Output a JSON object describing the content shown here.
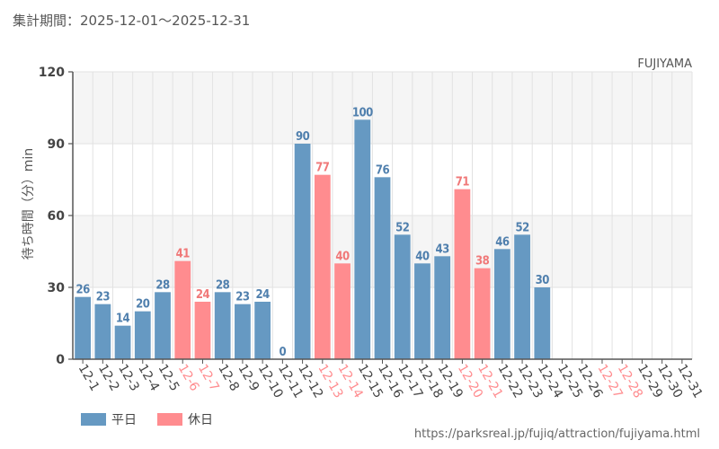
{
  "chart_data": {
    "type": "bar",
    "title": "集計期間：2025-12-01～2025-12-31",
    "attraction": "FUJIYAMA",
    "ylabel": "待ち時間（分）min",
    "xlabel": "",
    "ylim": [
      0,
      120
    ],
    "yticks": [
      0,
      30,
      60,
      90,
      120
    ],
    "grid": true,
    "categories": [
      "12-1",
      "12-2",
      "12-3",
      "12-4",
      "12-5",
      "12-6",
      "12-7",
      "12-8",
      "12-9",
      "12-10",
      "12-11",
      "12-12",
      "12-13",
      "12-14",
      "12-15",
      "12-16",
      "12-17",
      "12-18",
      "12-19",
      "12-20",
      "12-21",
      "12-22",
      "12-23",
      "12-24",
      "12-25",
      "12-26",
      "12-27",
      "12-28",
      "12-29",
      "12-30",
      "12-31"
    ],
    "values": [
      26,
      23,
      14,
      20,
      28,
      41,
      24,
      28,
      23,
      24,
      0,
      90,
      77,
      40,
      100,
      76,
      52,
      40,
      43,
      71,
      38,
      46,
      52,
      30,
      null,
      null,
      null,
      null,
      null,
      null,
      null
    ],
    "day_type": [
      "weekday",
      "weekday",
      "weekday",
      "weekday",
      "weekday",
      "holiday",
      "holiday",
      "weekday",
      "weekday",
      "weekday",
      "weekday",
      "weekday",
      "holiday",
      "holiday",
      "weekday",
      "weekday",
      "weekday",
      "weekday",
      "weekday",
      "holiday",
      "holiday",
      "weekday",
      "weekday",
      "weekday",
      "weekday",
      "weekday",
      "holiday",
      "holiday",
      "weekday",
      "weekday",
      "weekday"
    ],
    "series_names": {
      "weekday": "平日",
      "holiday": "休日"
    },
    "legend_position": "bottom-left",
    "colors": {
      "weekday": "#6699c2",
      "holiday": "#ff8c8f",
      "weekday_text": "#4f7fad",
      "holiday_text": "#f07878",
      "band": "#f5f5f5",
      "grid": "#e2e2e2",
      "axis": "#555555",
      "text": "#555555"
    }
  },
  "source_url": "https://parksreal.jp/fujiq/attraction/fujiyama.html"
}
